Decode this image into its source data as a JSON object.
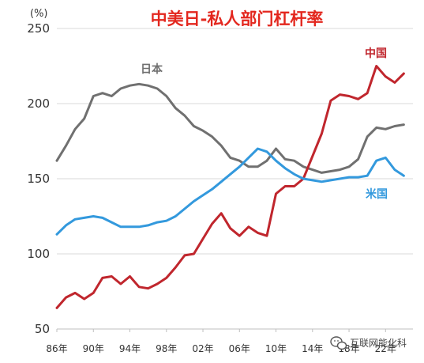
{
  "chart_data": {
    "type": "line",
    "title": "中美日-私人部门杠杆率",
    "unit_label": "(%)",
    "ylim": [
      50,
      250
    ],
    "y_ticks": [
      50,
      100,
      150,
      200,
      250
    ],
    "xlim": [
      1986,
      2025
    ],
    "x_ticks": [
      {
        "value": 1986,
        "label": "86年"
      },
      {
        "value": 1990,
        "label": "90年"
      },
      {
        "value": 1994,
        "label": "94年"
      },
      {
        "value": 1998,
        "label": "98年"
      },
      {
        "value": 2002,
        "label": "02年"
      },
      {
        "value": 2006,
        "label": "06年"
      },
      {
        "value": 2010,
        "label": "10年"
      },
      {
        "value": 2014,
        "label": "14年"
      },
      {
        "value": 2018,
        "label": "18年"
      },
      {
        "value": 2022,
        "label": "22年"
      }
    ],
    "grid": "horizontal",
    "series": [
      {
        "name": "日本",
        "color": "#707070",
        "x": [
          1986,
          1987,
          1988,
          1989,
          1990,
          1991,
          1992,
          1993,
          1994,
          1995,
          1996,
          1997,
          1998,
          1999,
          2000,
          2001,
          2002,
          2003,
          2004,
          2005,
          2006,
          2007,
          2008,
          2009,
          2010,
          2011,
          2012,
          2013,
          2014,
          2015,
          2016,
          2017,
          2018,
          2019,
          2020,
          2021,
          2022,
          2023,
          2024
        ],
        "values": [
          162,
          172,
          183,
          190,
          205,
          207,
          205,
          210,
          212,
          213,
          212,
          210,
          205,
          197,
          192,
          185,
          182,
          178,
          172,
          164,
          162,
          158,
          158,
          162,
          170,
          163,
          162,
          158,
          156,
          154,
          155,
          156,
          158,
          163,
          178,
          184,
          183,
          185,
          186
        ]
      },
      {
        "name": "中国",
        "color": "#c0262d",
        "x": [
          1986,
          1987,
          1988,
          1989,
          1990,
          1991,
          1992,
          1993,
          1994,
          1995,
          1996,
          1997,
          1998,
          1999,
          2000,
          2001,
          2002,
          2003,
          2004,
          2005,
          2006,
          2007,
          2008,
          2009,
          2010,
          2011,
          2012,
          2013,
          2014,
          2015,
          2016,
          2017,
          2018,
          2019,
          2020,
          2021,
          2022,
          2023,
          2024
        ],
        "values": [
          64,
          71,
          74,
          70,
          74,
          84,
          85,
          80,
          85,
          78,
          77,
          80,
          84,
          91,
          99,
          100,
          110,
          120,
          127,
          117,
          112,
          118,
          114,
          112,
          140,
          145,
          145,
          150,
          165,
          180,
          202,
          206,
          205,
          203,
          207,
          225,
          218,
          214,
          220
        ]
      },
      {
        "name": "米国",
        "color": "#3399dd",
        "x": [
          1986,
          1987,
          1988,
          1989,
          1990,
          1991,
          1992,
          1993,
          1994,
          1995,
          1996,
          1997,
          1998,
          1999,
          2000,
          2001,
          2002,
          2003,
          2004,
          2005,
          2006,
          2007,
          2008,
          2009,
          2010,
          2011,
          2012,
          2013,
          2014,
          2015,
          2016,
          2017,
          2018,
          2019,
          2020,
          2021,
          2022,
          2023,
          2024
        ],
        "values": [
          113,
          119,
          123,
          124,
          125,
          124,
          121,
          118,
          118,
          118,
          119,
          121,
          122,
          125,
          130,
          135,
          139,
          143,
          148,
          153,
          158,
          164,
          170,
          168,
          162,
          157,
          153,
          150,
          149,
          148,
          149,
          150,
          151,
          151,
          152,
          162,
          164,
          156,
          152
        ]
      }
    ]
  },
  "watermark": "互联网能化科",
  "watermark_icon": "wechat-icon"
}
